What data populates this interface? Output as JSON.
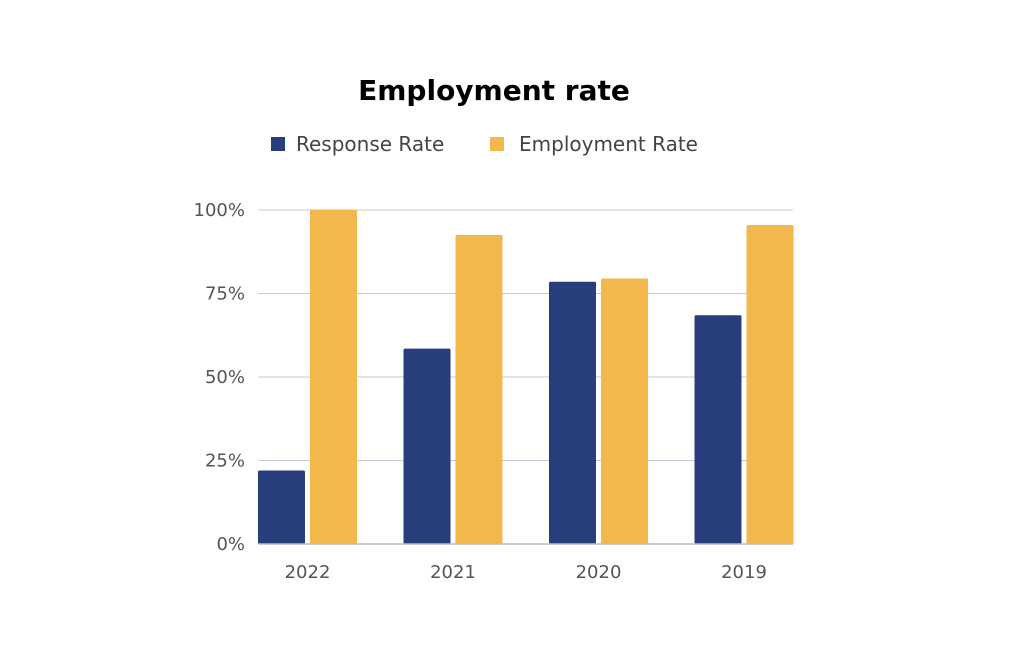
{
  "chart_data": {
    "type": "bar",
    "title": "Employment rate",
    "categories": [
      "2022",
      "2021",
      "2020",
      "2019"
    ],
    "series": [
      {
        "name": "Response Rate",
        "color": "#283d7c",
        "values": [
          22,
          58.5,
          78.5,
          68.5
        ]
      },
      {
        "name": "Employment Rate",
        "color": "#f2b84b",
        "values": [
          100,
          92.5,
          79.5,
          95.5
        ]
      }
    ],
    "ylim": [
      0,
      100
    ],
    "yticks": [
      {
        "value": 0,
        "label": "0%"
      },
      {
        "value": 25,
        "label": "25%"
      },
      {
        "value": 50,
        "label": "50%"
      },
      {
        "value": 75,
        "label": "75%"
      },
      {
        "value": 100,
        "label": "100%"
      }
    ],
    "grid": true,
    "legend_position": "top-center",
    "xlabel": "",
    "ylabel": ""
  }
}
